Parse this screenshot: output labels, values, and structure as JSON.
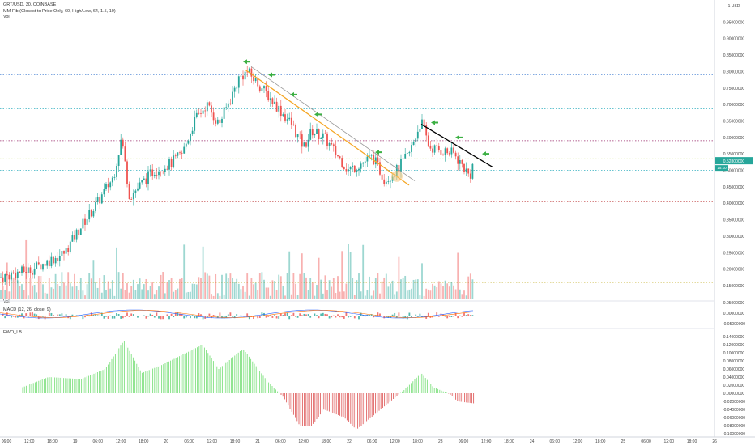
{
  "legend": {
    "symbol_line": "GRT/USD, 30, COINBASE",
    "indicator_line": "MM-Fib (Closest to Price Only, 60, High/Low, 64, 1.5, 10)",
    "vol_line": "Vol"
  },
  "panes": {
    "vol_label": "Vol",
    "macd_label": "MACD (12, 26, close, 9)",
    "ewo_label": "EWO_LB"
  },
  "price_badge": {
    "value": "0.52800000",
    "sub": "15:10",
    "color": "#26a69a"
  },
  "colors": {
    "up": "#26a69a",
    "down": "#ef5350",
    "ewo_up": "#7ee07e",
    "ewo_down": "#e06060",
    "trend_orange": "#f5a623",
    "trend_black": "#000000",
    "arrow": "#3cb043",
    "highlight": "#f5c57a"
  },
  "chart_data": {
    "type": "candlestick",
    "price_axis": [
      "1 USD",
      "0.95000000",
      "0.90000000",
      "0.85000000",
      "0.80000000",
      "0.75000000",
      "0.70000000",
      "0.65000000",
      "0.60000000",
      "0.55000000",
      "0.50000000",
      "0.45000000",
      "0.40000000",
      "0.35000000",
      "0.30000000",
      "0.25000000",
      "0.20000000",
      "0.15000000"
    ],
    "price_values": [
      1.0,
      0.95,
      0.9,
      0.85,
      0.8,
      0.75,
      0.7,
      0.65,
      0.6,
      0.55,
      0.5,
      0.45,
      0.4,
      0.35,
      0.3,
      0.25,
      0.2,
      0.15
    ],
    "macd_axis": [
      "0.05000000",
      "0.00000000",
      "-0.05000000"
    ],
    "ewo_axis": [
      "0.14000000",
      "0.12000000",
      "0.10000000",
      "0.08000000",
      "0.06000000",
      "0.04000000",
      "0.02000000",
      "0.00000000",
      "-0.02000000",
      "-0.04000000",
      "-0.06000000",
      "-0.08000000",
      "-0.10000000"
    ],
    "time_axis": [
      "06:00",
      "12:00",
      "18:00",
      "19",
      "06:00",
      "12:00",
      "18:00",
      "20",
      "06:00",
      "12:00",
      "18:00",
      "21",
      "06:00",
      "12:00",
      "18:00",
      "22",
      "06:00",
      "12:00",
      "18:00",
      "23",
      "06:00",
      "12:00",
      "18:00",
      "24",
      "06:00",
      "12:00",
      "18:00",
      "25",
      "06:00",
      "12:00",
      "18:00",
      "26"
    ],
    "price_path_keypoints": [
      [
        0,
        0.175
      ],
      [
        40,
        0.2
      ],
      [
        80,
        0.25
      ],
      [
        100,
        0.33
      ],
      [
        120,
        0.4
      ],
      [
        140,
        0.48
      ],
      [
        150,
        0.6
      ],
      [
        160,
        0.42
      ],
      [
        175,
        0.46
      ],
      [
        190,
        0.5
      ],
      [
        210,
        0.52
      ],
      [
        225,
        0.55
      ],
      [
        240,
        0.65
      ],
      [
        255,
        0.7
      ],
      [
        270,
        0.64
      ],
      [
        285,
        0.72
      ],
      [
        295,
        0.78
      ],
      [
        305,
        0.8
      ],
      [
        320,
        0.76
      ],
      [
        340,
        0.7
      ],
      [
        360,
        0.64
      ],
      [
        375,
        0.57
      ],
      [
        385,
        0.62
      ],
      [
        400,
        0.6
      ],
      [
        415,
        0.55
      ],
      [
        430,
        0.5
      ],
      [
        445,
        0.52
      ],
      [
        460,
        0.54
      ],
      [
        475,
        0.47
      ],
      [
        490,
        0.5
      ],
      [
        505,
        0.55
      ],
      [
        520,
        0.65
      ],
      [
        530,
        0.57
      ],
      [
        545,
        0.56
      ],
      [
        560,
        0.55
      ],
      [
        575,
        0.5
      ],
      [
        580,
        0.48
      ],
      [
        585,
        0.53
      ]
    ],
    "horizontal_levels": [
      {
        "value": 0.79,
        "color": "#5a8fd8"
      },
      {
        "value": 0.687,
        "color": "#34b0c0"
      },
      {
        "value": 0.625,
        "color": "#e9a73a"
      },
      {
        "value": 0.59,
        "color": "#9b2e6e"
      },
      {
        "value": 0.535,
        "color": "#b8d84a"
      },
      {
        "value": 0.5,
        "color": "#34b0c0"
      },
      {
        "value": 0.405,
        "color": "#c04040"
      },
      {
        "value": 0.16,
        "color": "#b8a000"
      }
    ],
    "ylim": [
      0.1,
      1.0
    ],
    "grid": false
  }
}
